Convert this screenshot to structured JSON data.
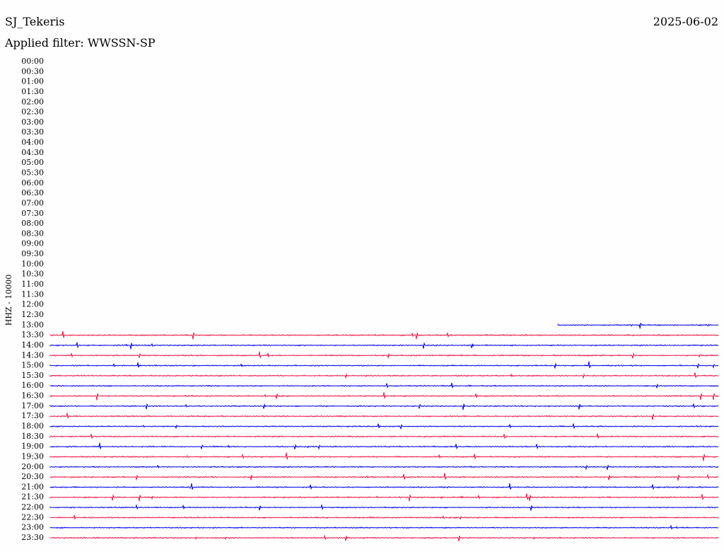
{
  "chart_data": {
    "type": "helicorder",
    "title": "SJ_Tekeris",
    "date": "2025-06-02",
    "subtitle": "Applied filter: WWSSN-SP",
    "ylabel": "HHZ - 10000",
    "categories": [
      "00:00",
      "00:30",
      "01:00",
      "01:30",
      "02:00",
      "02:30",
      "03:00",
      "03:30",
      "04:00",
      "04:30",
      "05:00",
      "05:30",
      "06:00",
      "06:30",
      "07:00",
      "07:30",
      "08:00",
      "08:30",
      "09:00",
      "09:30",
      "10:00",
      "10:30",
      "11:00",
      "11:30",
      "12:00",
      "12:30",
      "13:00",
      "13:30",
      "14:00",
      "14:30",
      "15:00",
      "15:30",
      "16:00",
      "16:30",
      "17:00",
      "17:30",
      "18:00",
      "18:30",
      "19:00",
      "19:30",
      "20:00",
      "20:30",
      "21:00",
      "21:30",
      "22:00",
      "22:30",
      "23:00",
      "23:30"
    ],
    "colors": [
      null,
      null,
      null,
      null,
      null,
      null,
      null,
      null,
      null,
      null,
      null,
      null,
      null,
      null,
      null,
      null,
      null,
      null,
      null,
      null,
      null,
      null,
      null,
      null,
      null,
      null,
      "#0000ee",
      "#ee1144",
      "#0000ee",
      "#ee1144",
      "#0000ee",
      "#ee1144",
      "#0000ee",
      "#ee1144",
      "#0000ee",
      "#ee1144",
      "#0000ee",
      "#ee1144",
      "#0000ee",
      "#ee1144",
      "#0000ee",
      "#ee1144",
      "#0000ee",
      "#ee1144",
      "#0000ee",
      "#ee1144",
      "#0000ee",
      "#ee1144"
    ]
  }
}
